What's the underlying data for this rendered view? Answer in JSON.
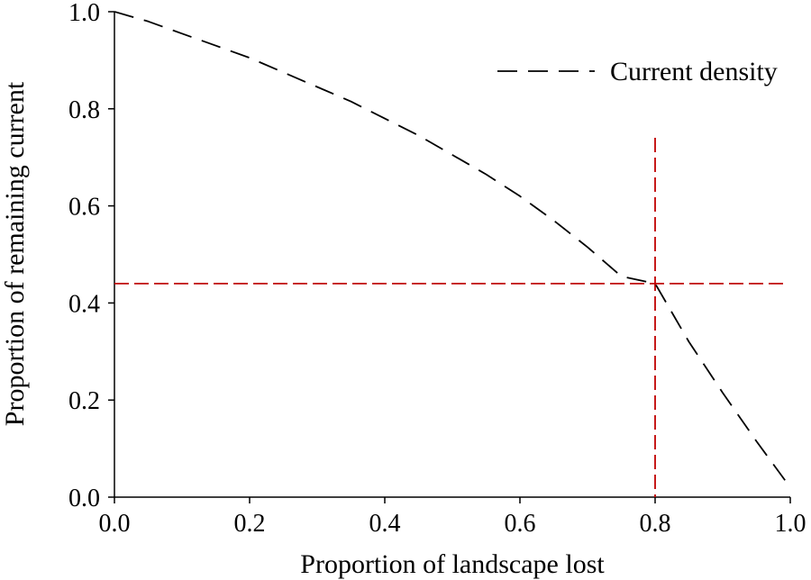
{
  "chart_data": {
    "type": "line",
    "title": "",
    "xlabel": "Proportion of landscape lost",
    "ylabel": "Proportion of remaining current",
    "xlim": [
      0,
      1
    ],
    "ylim": [
      0,
      1
    ],
    "x_ticks": [
      "0.0",
      "0.2",
      "0.4",
      "0.6",
      "0.8",
      "1.0"
    ],
    "y_ticks": [
      "0.0",
      "0.2",
      "0.4",
      "0.6",
      "0.8",
      "1.0"
    ],
    "grid": false,
    "legend_position": "top-right",
    "series": [
      {
        "name": "Current density",
        "color": "#000000",
        "line_style": "dashed",
        "x": [
          0.0,
          0.05,
          0.1,
          0.15,
          0.2,
          0.25,
          0.3,
          0.35,
          0.4,
          0.45,
          0.5,
          0.55,
          0.6,
          0.65,
          0.7,
          0.75,
          0.8,
          0.85,
          0.9,
          0.95,
          1.0
        ],
        "y": [
          1.0,
          0.98,
          0.955,
          0.93,
          0.905,
          0.875,
          0.845,
          0.815,
          0.78,
          0.745,
          0.705,
          0.665,
          0.62,
          0.57,
          0.515,
          0.455,
          0.44,
          0.32,
          0.215,
          0.115,
          0.02
        ]
      }
    ],
    "reference_lines": [
      {
        "orientation": "vertical",
        "value": 0.8,
        "color": "#c00000",
        "line_style": "dashed"
      },
      {
        "orientation": "horizontal",
        "value": 0.44,
        "color": "#c00000",
        "line_style": "dashed"
      }
    ]
  }
}
